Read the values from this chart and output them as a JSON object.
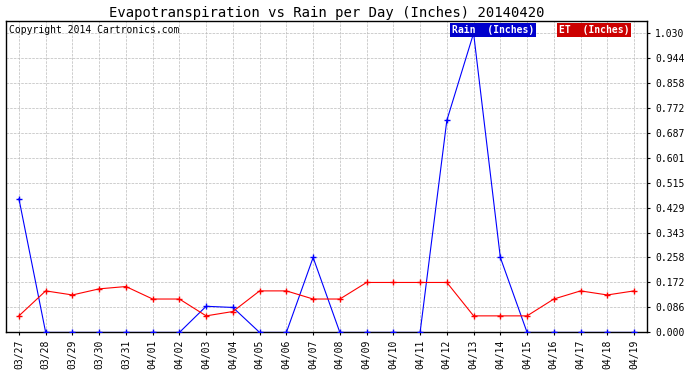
{
  "title": "Evapotranspiration vs Rain per Day (Inches) 20140420",
  "copyright": "Copyright 2014 Cartronics.com",
  "dates": [
    "03/27",
    "03/28",
    "03/29",
    "03/30",
    "03/31",
    "04/01",
    "04/02",
    "04/03",
    "04/04",
    "04/05",
    "04/06",
    "04/07",
    "04/08",
    "04/09",
    "04/10",
    "04/11",
    "04/12",
    "04/13",
    "04/14",
    "04/15",
    "04/16",
    "04/17",
    "04/18",
    "04/19"
  ],
  "rain": [
    0.46,
    0.0,
    0.0,
    0.0,
    0.0,
    0.0,
    0.0,
    0.09,
    0.086,
    0.0,
    0.0,
    0.258,
    0.0,
    0.0,
    0.0,
    0.0,
    0.73,
    1.03,
    0.258,
    0.0,
    0.0,
    0.0,
    0.0,
    0.0
  ],
  "et": [
    0.057,
    0.143,
    0.129,
    0.15,
    0.158,
    0.115,
    0.115,
    0.057,
    0.072,
    0.143,
    0.143,
    0.115,
    0.115,
    0.172,
    0.172,
    0.172,
    0.172,
    0.057,
    0.057,
    0.057,
    0.115,
    0.143,
    0.129,
    0.143
  ],
  "ylim": [
    0.0,
    1.073
  ],
  "yticks": [
    0.0,
    0.086,
    0.172,
    0.258,
    0.343,
    0.429,
    0.515,
    0.601,
    0.687,
    0.772,
    0.858,
    0.944,
    1.03
  ],
  "rain_color": "#0000ff",
  "et_color": "#ff0000",
  "background_color": "#ffffff",
  "grid_color": "#bbbbbb",
  "legend_rain_bg": "#0000cc",
  "legend_et_bg": "#cc0000",
  "title_fontsize": 10,
  "copyright_fontsize": 7,
  "tick_fontsize": 7,
  "legend_fontsize": 7
}
